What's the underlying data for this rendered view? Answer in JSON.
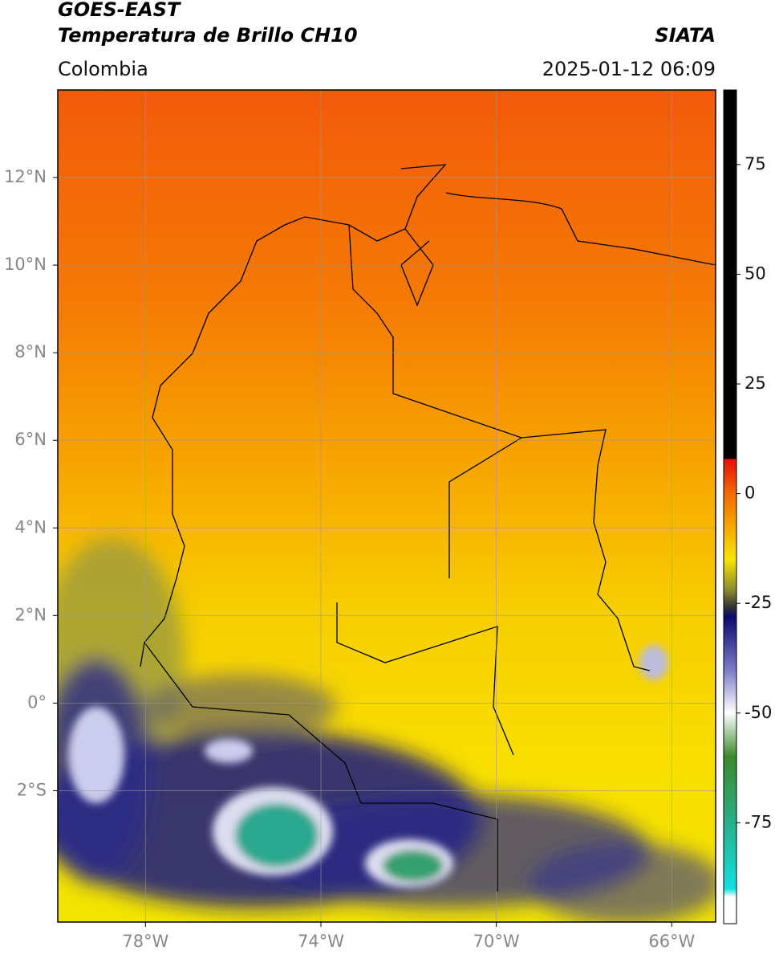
{
  "header": {
    "title_line1": "GOES-EAST",
    "title_line2": "Temperatura de Brillo CH10",
    "region": "Colombia",
    "source": "SIATA",
    "datetime": "2025-01-12 06:09"
  },
  "map": {
    "xlim": [
      -80,
      -65
    ],
    "ylim": [
      -5,
      14
    ],
    "xticks": [
      {
        "value": -78,
        "label": "78°W"
      },
      {
        "value": -74,
        "label": "74°W"
      },
      {
        "value": -70,
        "label": "70°W"
      },
      {
        "value": -66,
        "label": "66°W"
      }
    ],
    "yticks": [
      {
        "value": 12,
        "label": "12°N"
      },
      {
        "value": 10,
        "label": "10°N"
      },
      {
        "value": 8,
        "label": "8°N"
      },
      {
        "value": 6,
        "label": "6°N"
      },
      {
        "value": 4,
        "label": "4°N"
      },
      {
        "value": 2,
        "label": "2°N"
      },
      {
        "value": 0,
        "label": "0°"
      },
      {
        "value": -2,
        "label": "2°S"
      }
    ],
    "grid": true
  },
  "colorbar": {
    "clim": [
      -98,
      92
    ],
    "ticks": [
      75,
      50,
      25,
      0,
      -25,
      -50,
      -75
    ]
  }
}
